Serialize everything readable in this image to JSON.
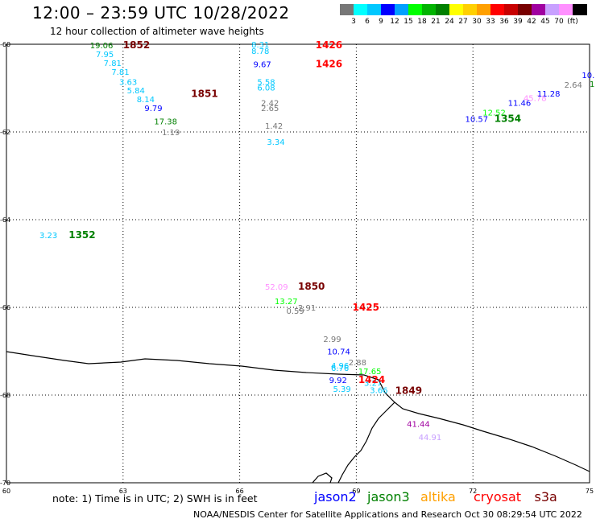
{
  "header": {
    "title": "12:00 – 23:59 UTC 10/28/2022",
    "subtitle": "12 hour collection of altimeter wave heights"
  },
  "legend": {
    "colors": [
      "#777777",
      "#00ffff",
      "#00c8ff",
      "#0000ff",
      "#00a0ff",
      "#00ff00",
      "#00b400",
      "#008000",
      "#ffff00",
      "#ffd000",
      "#ffa000",
      "#ff0000",
      "#c80000",
      "#780000",
      "#a000a0",
      "#c8a0ff",
      "#ff90ff",
      "#000000"
    ],
    "labels": [
      {
        "text": "3",
        "i": 1
      },
      {
        "text": "6",
        "i": 2
      },
      {
        "text": "9",
        "i": 3
      },
      {
        "text": "12",
        "i": 4
      },
      {
        "text": "15",
        "i": 5
      },
      {
        "text": "18",
        "i": 6
      },
      {
        "text": "21",
        "i": 7
      },
      {
        "text": "24",
        "i": 8
      },
      {
        "text": "27",
        "i": 9
      },
      {
        "text": "30",
        "i": 10
      },
      {
        "text": "33",
        "i": 11
      },
      {
        "text": "36",
        "i": 12
      },
      {
        "text": "39",
        "i": 13
      },
      {
        "text": "42",
        "i": 14
      },
      {
        "text": "45",
        "i": 15
      },
      {
        "text": "70",
        "i": 16
      },
      {
        "text": "(ft)",
        "i": 17
      }
    ]
  },
  "map": {
    "lon_range": [
      60,
      75
    ],
    "lat_range": [
      -60,
      -70
    ],
    "lon_ticks": [
      60,
      63,
      66,
      69,
      72,
      75
    ],
    "lat_ticks": [
      -60,
      -62,
      -64,
      -66,
      -68,
      -70
    ],
    "coast_color": "#000000",
    "grid": true
  },
  "observations": [
    {
      "v": "19.06",
      "lon": 62.15,
      "lat": -60.02,
      "c": "#008000"
    },
    {
      "v": "7.95",
      "lon": 62.3,
      "lat": -60.22,
      "c": "#00c8ff"
    },
    {
      "v": "7.81",
      "lon": 62.5,
      "lat": -60.42,
      "c": "#00c8ff"
    },
    {
      "v": "7.81",
      "lon": 62.7,
      "lat": -60.62,
      "c": "#00c8ff"
    },
    {
      "v": "3.63",
      "lon": 62.9,
      "lat": -60.85,
      "c": "#00c8ff"
    },
    {
      "v": "5.84",
      "lon": 63.1,
      "lat": -61.05,
      "c": "#00c8ff"
    },
    {
      "v": "8.14",
      "lon": 63.35,
      "lat": -61.25,
      "c": "#00c8ff"
    },
    {
      "v": "9.79",
      "lon": 63.55,
      "lat": -61.45,
      "c": "#0000ff"
    },
    {
      "v": "17.38",
      "lon": 63.8,
      "lat": -61.75,
      "c": "#008000"
    },
    {
      "v": "1.19",
      "lon": 64.0,
      "lat": -62.0,
      "c": "#777777"
    },
    {
      "v": "8.31",
      "lon": 66.3,
      "lat": -60.0,
      "c": "#00c8ff"
    },
    {
      "v": "8.78",
      "lon": 66.3,
      "lat": -60.15,
      "c": "#00c8ff"
    },
    {
      "v": "9.67",
      "lon": 66.35,
      "lat": -60.45,
      "c": "#0000ff"
    },
    {
      "v": "5.58",
      "lon": 66.45,
      "lat": -60.85,
      "c": "#00c8ff"
    },
    {
      "v": "6.08",
      "lon": 66.45,
      "lat": -60.98,
      "c": "#00c8ff"
    },
    {
      "v": "2.42",
      "lon": 66.55,
      "lat": -61.33,
      "c": "#777777"
    },
    {
      "v": "2.65",
      "lon": 66.55,
      "lat": -61.45,
      "c": "#777777"
    },
    {
      "v": "1.42",
      "lon": 66.65,
      "lat": -61.85,
      "c": "#777777"
    },
    {
      "v": "3.34",
      "lon": 66.7,
      "lat": -62.22,
      "c": "#00c8ff"
    },
    {
      "v": "12.52",
      "lon": 72.25,
      "lat": -61.55,
      "c": "#00ff00"
    },
    {
      "v": "10.57",
      "lon": 71.8,
      "lat": -61.7,
      "c": "#0000ff"
    },
    {
      "v": "11.46",
      "lon": 72.9,
      "lat": -61.33,
      "c": "#0000ff"
    },
    {
      "v": "45.78",
      "lon": 73.3,
      "lat": -61.22,
      "c": "#ff90ff"
    },
    {
      "v": "11.28",
      "lon": 73.65,
      "lat": -61.12,
      "c": "#0000ff"
    },
    {
      "v": "2.64",
      "lon": 74.35,
      "lat": -60.92,
      "c": "#777777"
    },
    {
      "v": "10.",
      "lon": 74.8,
      "lat": -60.7,
      "c": "#0000ff"
    },
    {
      "v": "1",
      "lon": 75.0,
      "lat": -60.9,
      "c": "#008000"
    },
    {
      "v": "3.23",
      "lon": 60.85,
      "lat": -64.35,
      "c": "#00c8ff"
    },
    {
      "v": "52.09",
      "lon": 66.65,
      "lat": -65.52,
      "c": "#ff90ff"
    },
    {
      "v": "13.27",
      "lon": 66.9,
      "lat": -65.85,
      "c": "#00ff00"
    },
    {
      "v": "0.59",
      "lon": 67.2,
      "lat": -66.07,
      "c": "#777777"
    },
    {
      "v": "2.91",
      "lon": 67.5,
      "lat": -66.0,
      "c": "#777777"
    },
    {
      "v": "2.99",
      "lon": 68.15,
      "lat": -66.72,
      "c": "#777777"
    },
    {
      "v": "10.74",
      "lon": 68.25,
      "lat": -67.0,
      "c": "#0000ff"
    },
    {
      "v": "2.88",
      "lon": 68.8,
      "lat": -67.25,
      "c": "#777777"
    },
    {
      "v": "4.96",
      "lon": 68.35,
      "lat": -67.32,
      "c": "#00c8ff"
    },
    {
      "v": "6.76",
      "lon": 68.35,
      "lat": -67.38,
      "c": "#00c8ff"
    },
    {
      "v": "17.65",
      "lon": 69.05,
      "lat": -67.45,
      "c": "#00ff00"
    },
    {
      "v": "9.92",
      "lon": 68.3,
      "lat": -67.65,
      "c": "#0000ff"
    },
    {
      "v": "3.27",
      "lon": 69.2,
      "lat": -67.72,
      "c": "#00c8ff"
    },
    {
      "v": "5.39",
      "lon": 68.4,
      "lat": -67.85,
      "c": "#00c8ff"
    },
    {
      "v": "3.66",
      "lon": 69.35,
      "lat": -67.88,
      "c": "#00c8ff"
    },
    {
      "v": "41.44",
      "lon": 70.3,
      "lat": -68.65,
      "c": "#a000a0"
    },
    {
      "v": "44.91",
      "lon": 70.6,
      "lat": -68.95,
      "c": "#c8a0ff"
    }
  ],
  "time_labels": [
    {
      "t": "1852",
      "lon": 63.0,
      "lat": -60.02,
      "c": "#780000"
    },
    {
      "t": "1851",
      "lon": 64.75,
      "lat": -61.13,
      "c": "#780000"
    },
    {
      "t": "1426",
      "lon": 67.95,
      "lat": -60.02,
      "c": "#ff0000"
    },
    {
      "t": "1426",
      "lon": 67.95,
      "lat": -60.45,
      "c": "#ff0000"
    },
    {
      "t": "1354",
      "lon": 72.55,
      "lat": -61.7,
      "c": "#008000"
    },
    {
      "t": "1352",
      "lon": 61.6,
      "lat": -64.35,
      "c": "#008000"
    },
    {
      "t": "1850",
      "lon": 67.5,
      "lat": -65.52,
      "c": "#780000"
    },
    {
      "t": "1425",
      "lon": 68.9,
      "lat": -66.0,
      "c": "#ff0000"
    },
    {
      "t": "1424",
      "lon": 69.05,
      "lat": -67.65,
      "c": "#ff0000"
    },
    {
      "t": "1849",
      "lon": 70.0,
      "lat": -67.9,
      "c": "#780000"
    }
  ],
  "footer": {
    "note": "note: 1) Time is in UTC; 2) SWH is in feet",
    "satellites": [
      {
        "name": "jason2",
        "color": "#0000ff"
      },
      {
        "name": "jason3",
        "color": "#008000"
      },
      {
        "name": "altika",
        "color": "#ffa000"
      },
      {
        "name": "cryosat",
        "color": "#ff0000"
      },
      {
        "name": "s3a",
        "color": "#780000"
      }
    ],
    "credit": "NOAA/NESDIS Center for Satellite Applications and Research    Oct 30 08:29:54 UTC 2022"
  }
}
